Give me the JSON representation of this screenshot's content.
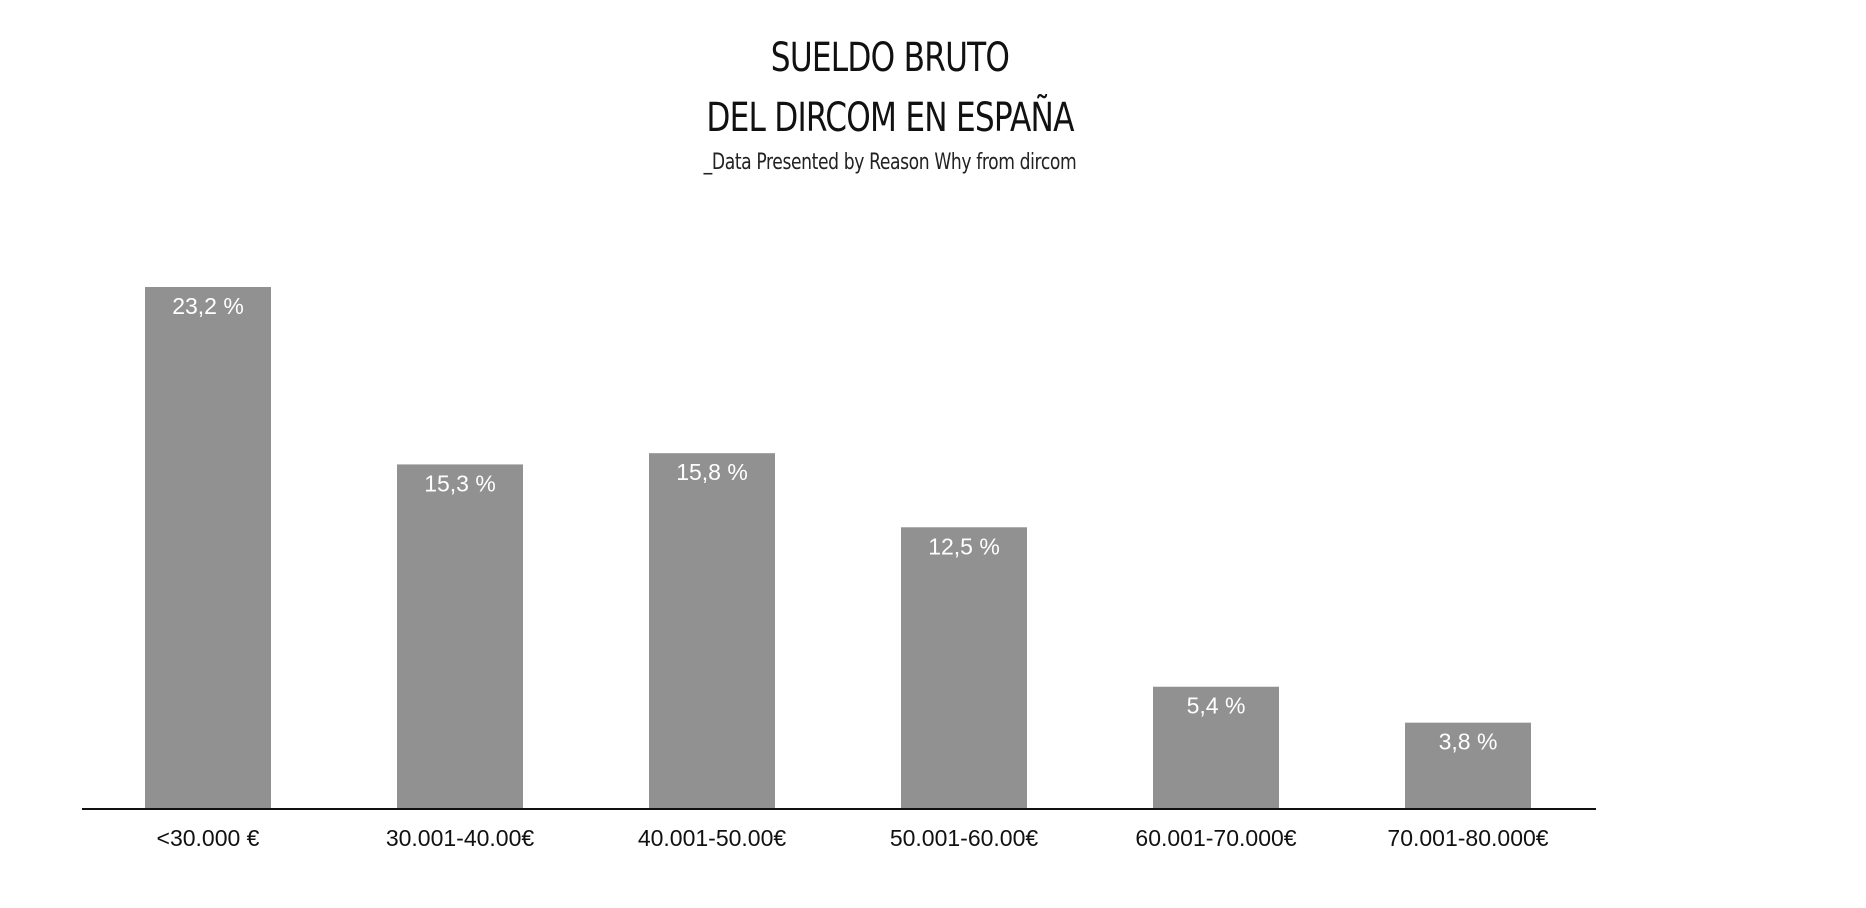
{
  "chart_data": {
    "type": "bar",
    "title_lines": [
      "SUELDO BRUTO",
      "DEL DIRCOM EN ESPAÑA"
    ],
    "subtitle": "_Data Presented by Reason Why from dircom",
    "categories": [
      "<30.000 €",
      "30.001-40.00€",
      "40.001-50.00€",
      "50.001-60.00€",
      "60.001-70.000€",
      "70.001-80.000€"
    ],
    "values": [
      23.2,
      15.3,
      15.8,
      12.5,
      5.4,
      3.8
    ],
    "value_labels": [
      "23,2 %",
      "15,3 %",
      "15,8 %",
      "12,5 %",
      "5,4 %",
      "3,8 %"
    ],
    "xlabel": "",
    "ylabel": "",
    "ylim": [
      0,
      23.2
    ],
    "grid": false,
    "bar_color": "#919191",
    "label_color": "#ffffff",
    "axis_color": "#111111"
  }
}
